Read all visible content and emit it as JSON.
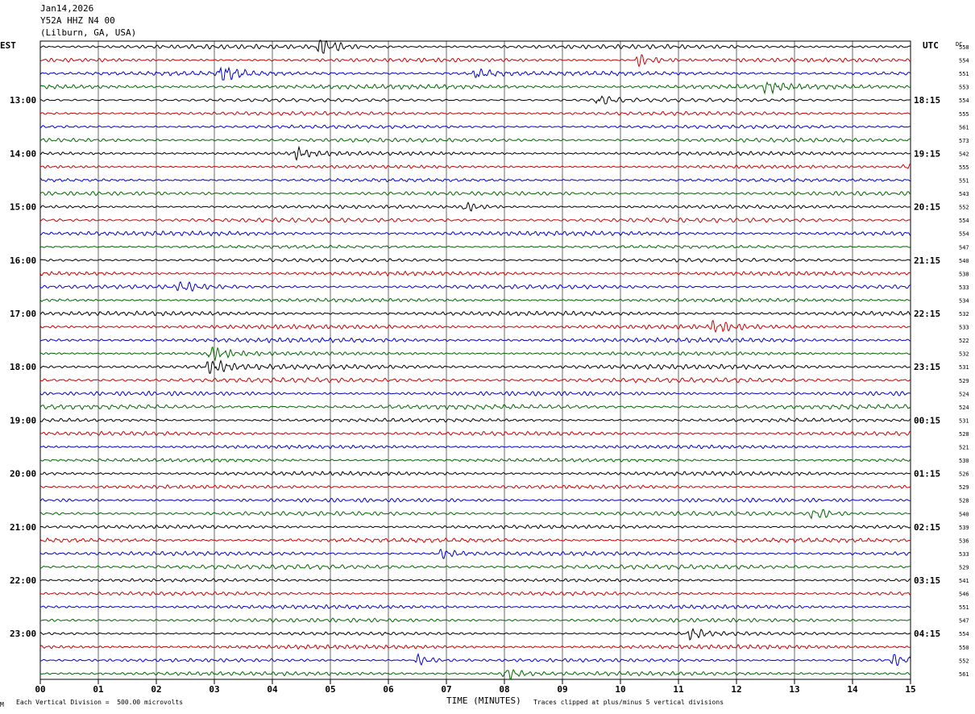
{
  "header": {
    "date": "Jan14,2026",
    "station": "Y52A HHZ N4 00",
    "location": "(Lilburn, GA, USA)"
  },
  "left_tz": "EST",
  "right_tz": "UTC",
  "dc_label": "DC",
  "footer": {
    "scale_note": "Each Vertical Division =  500.00 microvolts",
    "xlabel": "TIME (MINUTES)",
    "clip_note": "Traces clipped at plus/minus 5 vertical divisions",
    "corner_mark": "M"
  },
  "chart_data": {
    "type": "line",
    "title": "Y52A HHZ N4 00",
    "xlabel": "TIME (MINUTES)",
    "xlim": [
      0,
      15
    ],
    "x_ticks": [
      "00",
      "01",
      "02",
      "03",
      "04",
      "05",
      "06",
      "07",
      "08",
      "09",
      "10",
      "11",
      "12",
      "13",
      "14",
      "15"
    ],
    "left_hour_labels": [
      "13:00",
      "14:00",
      "15:00",
      "16:00",
      "17:00",
      "18:00",
      "19:00",
      "20:00",
      "21:00",
      "22:00",
      "23:00"
    ],
    "right_hour_labels": [
      "18:15",
      "19:15",
      "20:15",
      "21:15",
      "22:15",
      "23:15",
      "00:15",
      "01:15",
      "02:15",
      "03:15",
      "04:15"
    ],
    "trace_colors": [
      "#000000",
      "#cc0000",
      "#0000cc",
      "#006600"
    ],
    "traces_per_hour": 4,
    "trace_count": 48,
    "dc_offsets": [
      "558",
      "554",
      "551",
      "553",
      "554",
      "555",
      "561",
      "573",
      "542",
      "555",
      "551",
      "543",
      "552",
      "554",
      "554",
      "547",
      "540",
      "538",
      "533",
      "534",
      "532",
      "533",
      "522",
      "532",
      "531",
      "529",
      "524",
      "524",
      "531",
      "528",
      "521",
      "530",
      "526",
      "529",
      "528",
      "540",
      "539",
      "536",
      "533",
      "529",
      "541",
      "546",
      "551",
      "547",
      "554",
      "550",
      "552",
      "561"
    ],
    "events": [
      {
        "trace": 0,
        "minute": 4.8,
        "amp": 2.2
      },
      {
        "trace": 1,
        "minute": 10.3,
        "amp": 1.6
      },
      {
        "trace": 2,
        "minute": 3.1,
        "amp": 2.0
      },
      {
        "trace": 2,
        "minute": 7.5,
        "amp": 1.2
      },
      {
        "trace": 3,
        "minute": 12.5,
        "amp": 1.2
      },
      {
        "trace": 4,
        "minute": 9.6,
        "amp": 1.6
      },
      {
        "trace": 8,
        "minute": 4.4,
        "amp": 1.3
      },
      {
        "trace": 9,
        "minute": 14.9,
        "amp": 1.3
      },
      {
        "trace": 12,
        "minute": 7.3,
        "amp": 1.4
      },
      {
        "trace": 18,
        "minute": 2.4,
        "amp": 1.3
      },
      {
        "trace": 21,
        "minute": 11.6,
        "amp": 1.4
      },
      {
        "trace": 23,
        "minute": 2.9,
        "amp": 2.4
      },
      {
        "trace": 24,
        "minute": 2.9,
        "amp": 1.8
      },
      {
        "trace": 35,
        "minute": 13.3,
        "amp": 1.5
      },
      {
        "trace": 38,
        "minute": 6.9,
        "amp": 1.3
      },
      {
        "trace": 44,
        "minute": 11.2,
        "amp": 1.7
      },
      {
        "trace": 46,
        "minute": 6.5,
        "amp": 1.5
      },
      {
        "trace": 46,
        "minute": 14.7,
        "amp": 1.6
      },
      {
        "trace": 47,
        "minute": 8.0,
        "amp": 1.5
      }
    ]
  }
}
